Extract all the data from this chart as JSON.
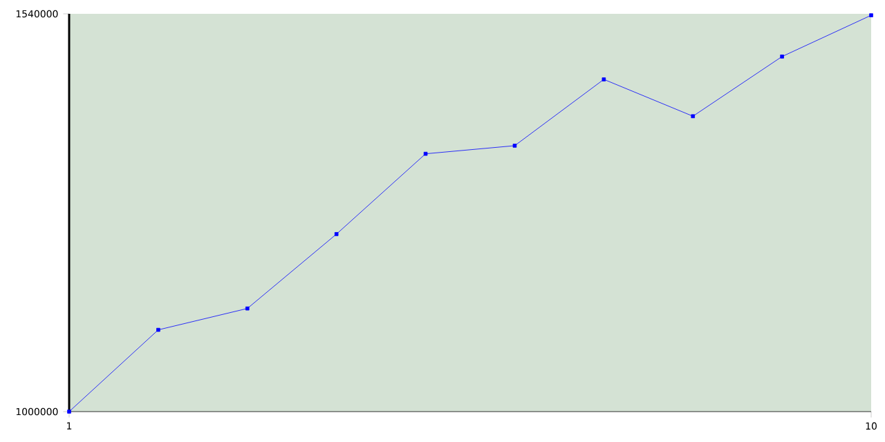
{
  "chart_data": {
    "type": "line",
    "x": [
      1,
      2,
      3,
      4,
      5,
      6,
      7,
      8,
      9,
      10
    ],
    "series": [
      {
        "color": "#0000ff",
        "values": [
          1000000,
          1111000,
          1140000,
          1241000,
          1350000,
          1361000,
          1451000,
          1401000,
          1482000,
          1538000
        ]
      }
    ],
    "xlim": [
      1,
      10
    ],
    "ylim": [
      1000000,
      1540000
    ],
    "xticks": [
      1,
      10
    ],
    "yticks": [
      1000000,
      1540000
    ],
    "marker": "square",
    "grid": false
  }
}
